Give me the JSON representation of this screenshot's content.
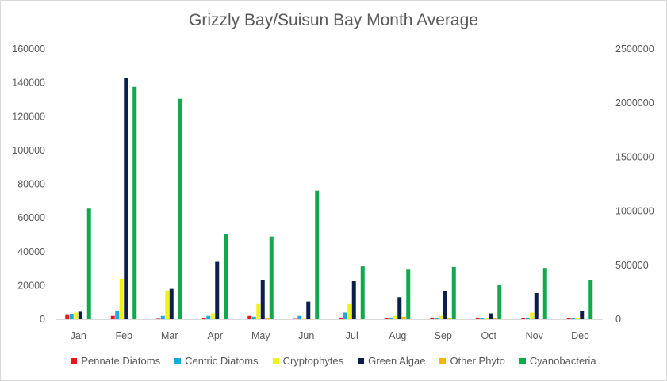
{
  "chart_data": {
    "type": "bar",
    "title": "Grizzly Bay/Suisun Bay Month Average",
    "xlabel": "",
    "ylabel": "",
    "categories": [
      "Jan",
      "Feb",
      "Mar",
      "Apr",
      "May",
      "Jun",
      "Jul",
      "Aug",
      "Sep",
      "Oct",
      "Nov",
      "Dec"
    ],
    "y_left": {
      "ylim": [
        0,
        160000
      ],
      "ticks": [
        "0",
        "20000",
        "40000",
        "60000",
        "80000",
        "100000",
        "120000",
        "140000",
        "160000"
      ]
    },
    "y_right": {
      "ylim": [
        0,
        2500000
      ],
      "ticks": [
        "0",
        "500000",
        "1000000",
        "1500000",
        "2000000",
        "2500000"
      ]
    },
    "grid": false,
    "legend": "bottom",
    "series": [
      {
        "name": "Pennate Diatoms",
        "axis": "left",
        "color": "#e31a1c",
        "values": [
          2500,
          2000,
          300,
          500,
          2000,
          200,
          1000,
          500,
          1000,
          1000,
          500,
          500
        ]
      },
      {
        "name": "Centric Diatoms",
        "axis": "left",
        "color": "#1ba7e0",
        "values": [
          3000,
          5000,
          2000,
          2000,
          1500,
          2000,
          4000,
          1000,
          1000,
          500,
          1000,
          500
        ]
      },
      {
        "name": "Cryptophytes",
        "axis": "left",
        "color": "#f2f21b",
        "values": [
          4000,
          24000,
          17000,
          3500,
          9000,
          300,
          9000,
          2000,
          2000,
          500,
          4000,
          800
        ]
      },
      {
        "name": "Green Algae",
        "axis": "left",
        "color": "#0b1f4d",
        "values": [
          4500,
          143000,
          18000,
          34000,
          23000,
          10500,
          22500,
          13000,
          16500,
          3500,
          15500,
          5000
        ]
      },
      {
        "name": "Other Phyto",
        "axis": "left",
        "color": "#f2b700",
        "values": [
          0,
          0,
          0,
          0,
          500,
          0,
          0,
          1500,
          500,
          500,
          0,
          0
        ]
      },
      {
        "name": "Cyanobacteria",
        "axis": "right",
        "color": "#12a84e",
        "values": [
          1025000,
          2150000,
          2040000,
          785000,
          765000,
          1190000,
          490000,
          460000,
          485000,
          315000,
          475000,
          360000
        ]
      }
    ]
  }
}
